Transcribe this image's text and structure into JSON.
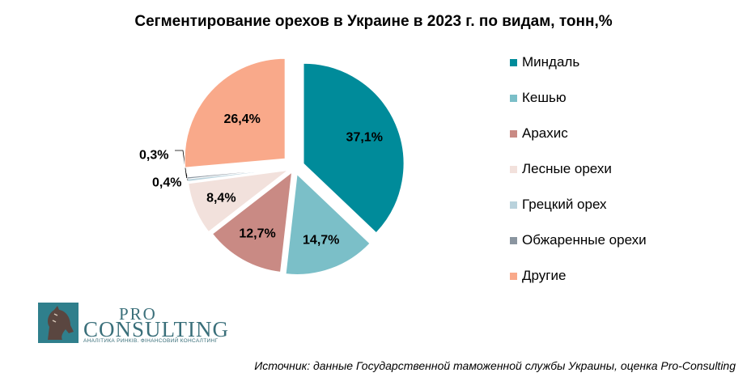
{
  "chart_data": {
    "type": "pie",
    "title": "Сегментирование орехов в Украине в 2023 г. по видам, тонн,%",
    "series": [
      {
        "name": "Миндаль",
        "value": 37.1,
        "label": "37,1%",
        "color": "#008b9a"
      },
      {
        "name": "Кешью",
        "value": 14.7,
        "label": "14,7%",
        "color": "#7bbfc8"
      },
      {
        "name": "Арахис",
        "value": 12.7,
        "label": "12,7%",
        "color": "#c98a84"
      },
      {
        "name": "Лесные орехи",
        "value": 8.4,
        "label": "8,4%",
        "color": "#f2e1dc"
      },
      {
        "name": "Грецкий орех",
        "value": 0.4,
        "label": "0,4%",
        "color": "#b9d2dc"
      },
      {
        "name": "Обжаренные орехи",
        "value": 0.3,
        "label": "0,3%",
        "color": "#8a95a0"
      },
      {
        "name": "Другие",
        "value": 26.4,
        "label": "26,4%",
        "color": "#f9a98a"
      }
    ],
    "legend": "right"
  },
  "logo": {
    "pro": "PRO",
    "consulting": "CONSULTING",
    "tagline": "АНАЛІТИКА РИНКІВ. ФІНАНСОВИЙ КОНСАЛТИНГ"
  },
  "source": "Источник: данные Государственной таможенной службы Украины, оценка Pro-Consulting"
}
